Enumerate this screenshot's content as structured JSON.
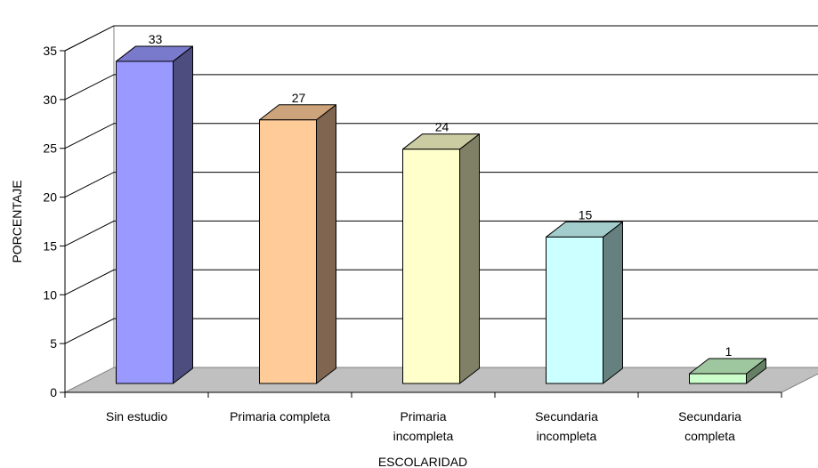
{
  "chart_data": {
    "type": "bar",
    "style": "3d-column",
    "categories": [
      [
        "Sin estudio"
      ],
      [
        "Primaria completa"
      ],
      [
        "Primaria",
        "incompleta"
      ],
      [
        "Secundaria",
        "incompleta"
      ],
      [
        "Secundaria",
        "completa"
      ]
    ],
    "values": [
      33,
      27,
      24,
      15,
      1
    ],
    "data_labels": [
      "33",
      "27",
      "24",
      "15",
      "1"
    ],
    "yticks": [
      "0",
      "5",
      "10",
      "15",
      "20",
      "25",
      "30",
      "35"
    ],
    "ylim": [
      0,
      35
    ],
    "xlabel": "ESCOLARIDAD",
    "ylabel": "PORCENTAJE",
    "grid": true,
    "legend": "none",
    "bar_colors": [
      {
        "front": "#9999ff",
        "side": "#4d4d80",
        "top": "#7a7acc"
      },
      {
        "front": "#ffcc99",
        "side": "#806650",
        "top": "#cca37a"
      },
      {
        "front": "#ffffcc",
        "side": "#808066",
        "top": "#cccca3"
      },
      {
        "front": "#ccffff",
        "side": "#668080",
        "top": "#a3cccc"
      },
      {
        "front": "#ccffcc",
        "side": "#668066",
        "top": "#9fc79f"
      }
    ],
    "floor_color": "#c0c0c0"
  }
}
